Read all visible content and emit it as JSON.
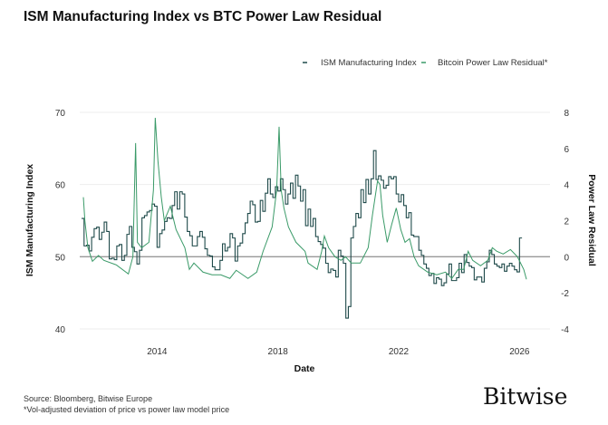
{
  "chart_data": {
    "type": "line",
    "title": "ISM Manufacturing Index vs BTC Power Law Residual",
    "xlabel": "Date",
    "ylabel_left": "ISM Manufacturing Index",
    "ylabel_right": "Power Law Residual",
    "xlim": [
      2011.5,
      2026.35
    ],
    "x_ticks": [
      "2014",
      "2018",
      "2022",
      "2026"
    ],
    "ylim_left": [
      40,
      70
    ],
    "y_ticks_left": [
      "40",
      "50",
      "60",
      "70"
    ],
    "ylim_right": [
      -4,
      8
    ],
    "y_ticks_right": [
      "-4",
      "-2",
      "0",
      "2",
      "4",
      "6",
      "8"
    ],
    "grid": "horizontal",
    "reference_line": {
      "axis": "left",
      "value": 50
    },
    "legend_position": "top-right",
    "series": [
      {
        "name": "ISM Manufacturing Index",
        "axis": "left",
        "color": "#1f4a4a",
        "style": "step",
        "start": "2011-07",
        "frequency": "monthly",
        "values": [
          55.3,
          51.5,
          51.6,
          50.8,
          52.7,
          53.9,
          54.1,
          52.4,
          53.4,
          54.8,
          53.5,
          49.7,
          49.8,
          49.6,
          51.5,
          51.7,
          49.5,
          50.2,
          53.1,
          54.2,
          51.3,
          50.7,
          49.0,
          50.9,
          55.4,
          55.7,
          56.2,
          56.4,
          57.3,
          57.0,
          51.3,
          53.2,
          53.7,
          54.9,
          55.4,
          55.3,
          57.1,
          59.0,
          56.6,
          59.0,
          58.7,
          55.5,
          53.5,
          52.9,
          51.5,
          51.5,
          52.8,
          53.5,
          52.7,
          51.1,
          50.2,
          50.1,
          48.6,
          48.2,
          48.2,
          49.5,
          51.8,
          50.8,
          51.3,
          53.2,
          52.6,
          49.4,
          51.5,
          51.9,
          53.2,
          54.7,
          56.0,
          57.7,
          57.2,
          54.8,
          54.9,
          57.8,
          56.3,
          58.8,
          60.8,
          58.7,
          58.2,
          59.7,
          59.1,
          60.8,
          59.3,
          57.3,
          58.7,
          60.2,
          58.1,
          61.3,
          59.8,
          57.7,
          59.3,
          54.3,
          56.6,
          54.2,
          55.3,
          52.8,
          52.1,
          51.7,
          51.2,
          49.1,
          47.8,
          48.3,
          48.1,
          47.2,
          50.9,
          50.1,
          49.1,
          41.5,
          43.1,
          52.6,
          54.2,
          56.0,
          55.4,
          59.3,
          57.5,
          60.7,
          58.7,
          60.8,
          64.7,
          60.7,
          61.2,
          60.6,
          59.5,
          59.9,
          61.1,
          60.8,
          61.1,
          58.7,
          57.6,
          58.6,
          57.1,
          55.4,
          56.1,
          53.0,
          52.8,
          52.8,
          50.9,
          50.2,
          49.0,
          48.4,
          47.4,
          47.7,
          46.3,
          47.1,
          46.9,
          46.0,
          46.4,
          47.6,
          49.0,
          46.7,
          46.7,
          47.1,
          49.1,
          47.8,
          50.3,
          49.2,
          48.7,
          48.5,
          46.8,
          47.2,
          47.2,
          46.5,
          48.4,
          49.3,
          50.9,
          50.3,
          49.0,
          48.7,
          48.5,
          49.0,
          48.0,
          48.7,
          49.1,
          48.7,
          48.2,
          47.9,
          52.6
        ]
      },
      {
        "name": "Bitcoin Power Law Residual*",
        "axis": "right",
        "color": "#3a9a68",
        "x": [
          2011.56,
          2011.61,
          2011.71,
          2011.86,
          2012.06,
          2012.24,
          2012.65,
          2013.05,
          2013.2,
          2013.29,
          2013.35,
          2013.49,
          2013.73,
          2013.88,
          2013.94,
          2014.03,
          2014.14,
          2014.24,
          2014.44,
          2014.63,
          2014.92,
          2015.07,
          2015.22,
          2015.52,
          2015.82,
          2016.11,
          2016.41,
          2016.62,
          2017.01,
          2017.3,
          2017.51,
          2017.81,
          2017.96,
          2018.04,
          2018.11,
          2018.2,
          2018.35,
          2018.6,
          2018.9,
          2019.0,
          2019.3,
          2019.45,
          2019.54,
          2019.68,
          2019.89,
          2020.09,
          2020.24,
          2020.43,
          2020.73,
          2020.99,
          2021.13,
          2021.3,
          2021.38,
          2021.47,
          2021.62,
          2021.77,
          2021.92,
          2022.07,
          2022.21,
          2022.36,
          2022.51,
          2022.66,
          2022.96,
          2023.26,
          2023.55,
          2023.76,
          2023.97,
          2024.15,
          2024.3,
          2024.45,
          2024.71,
          2024.95,
          2025.1,
          2025.25,
          2025.46,
          2025.7,
          2025.93,
          2026.14,
          2026.23
        ],
        "y": [
          3.3,
          2.0,
          0.5,
          -0.25,
          0.07,
          -0.2,
          -0.45,
          -0.95,
          0,
          6.3,
          0.8,
          0.5,
          0.8,
          3.7,
          7.7,
          5.3,
          3.3,
          2.0,
          2.8,
          1.5,
          0.5,
          -0.7,
          -0.35,
          -0.85,
          -1.0,
          -1.0,
          -1.2,
          -0.75,
          -1.2,
          -0.85,
          0.3,
          1.65,
          3.7,
          7.2,
          3.7,
          2.7,
          1.65,
          0.8,
          0.3,
          -0.35,
          -0.7,
          0.3,
          1.15,
          0.5,
          0,
          -0.2,
          0,
          -0.35,
          -0.35,
          0.5,
          2.3,
          4.2,
          4.0,
          2.3,
          0.8,
          1.8,
          2.7,
          1.5,
          0.8,
          1.0,
          0,
          -0.5,
          -0.85,
          -1.0,
          -0.85,
          -1.2,
          -0.7,
          -0.7,
          0.3,
          -0.2,
          -0.5,
          -0.2,
          0.5,
          0.3,
          0.15,
          0.4,
          0,
          -0.7,
          -1.25
        ]
      }
    ]
  },
  "footer": {
    "source": "Source: Bloomberg, Bitwise Europe",
    "footnote": "*Vol-adjusted deviation of price vs power law model price",
    "logo": "Bitwise"
  }
}
